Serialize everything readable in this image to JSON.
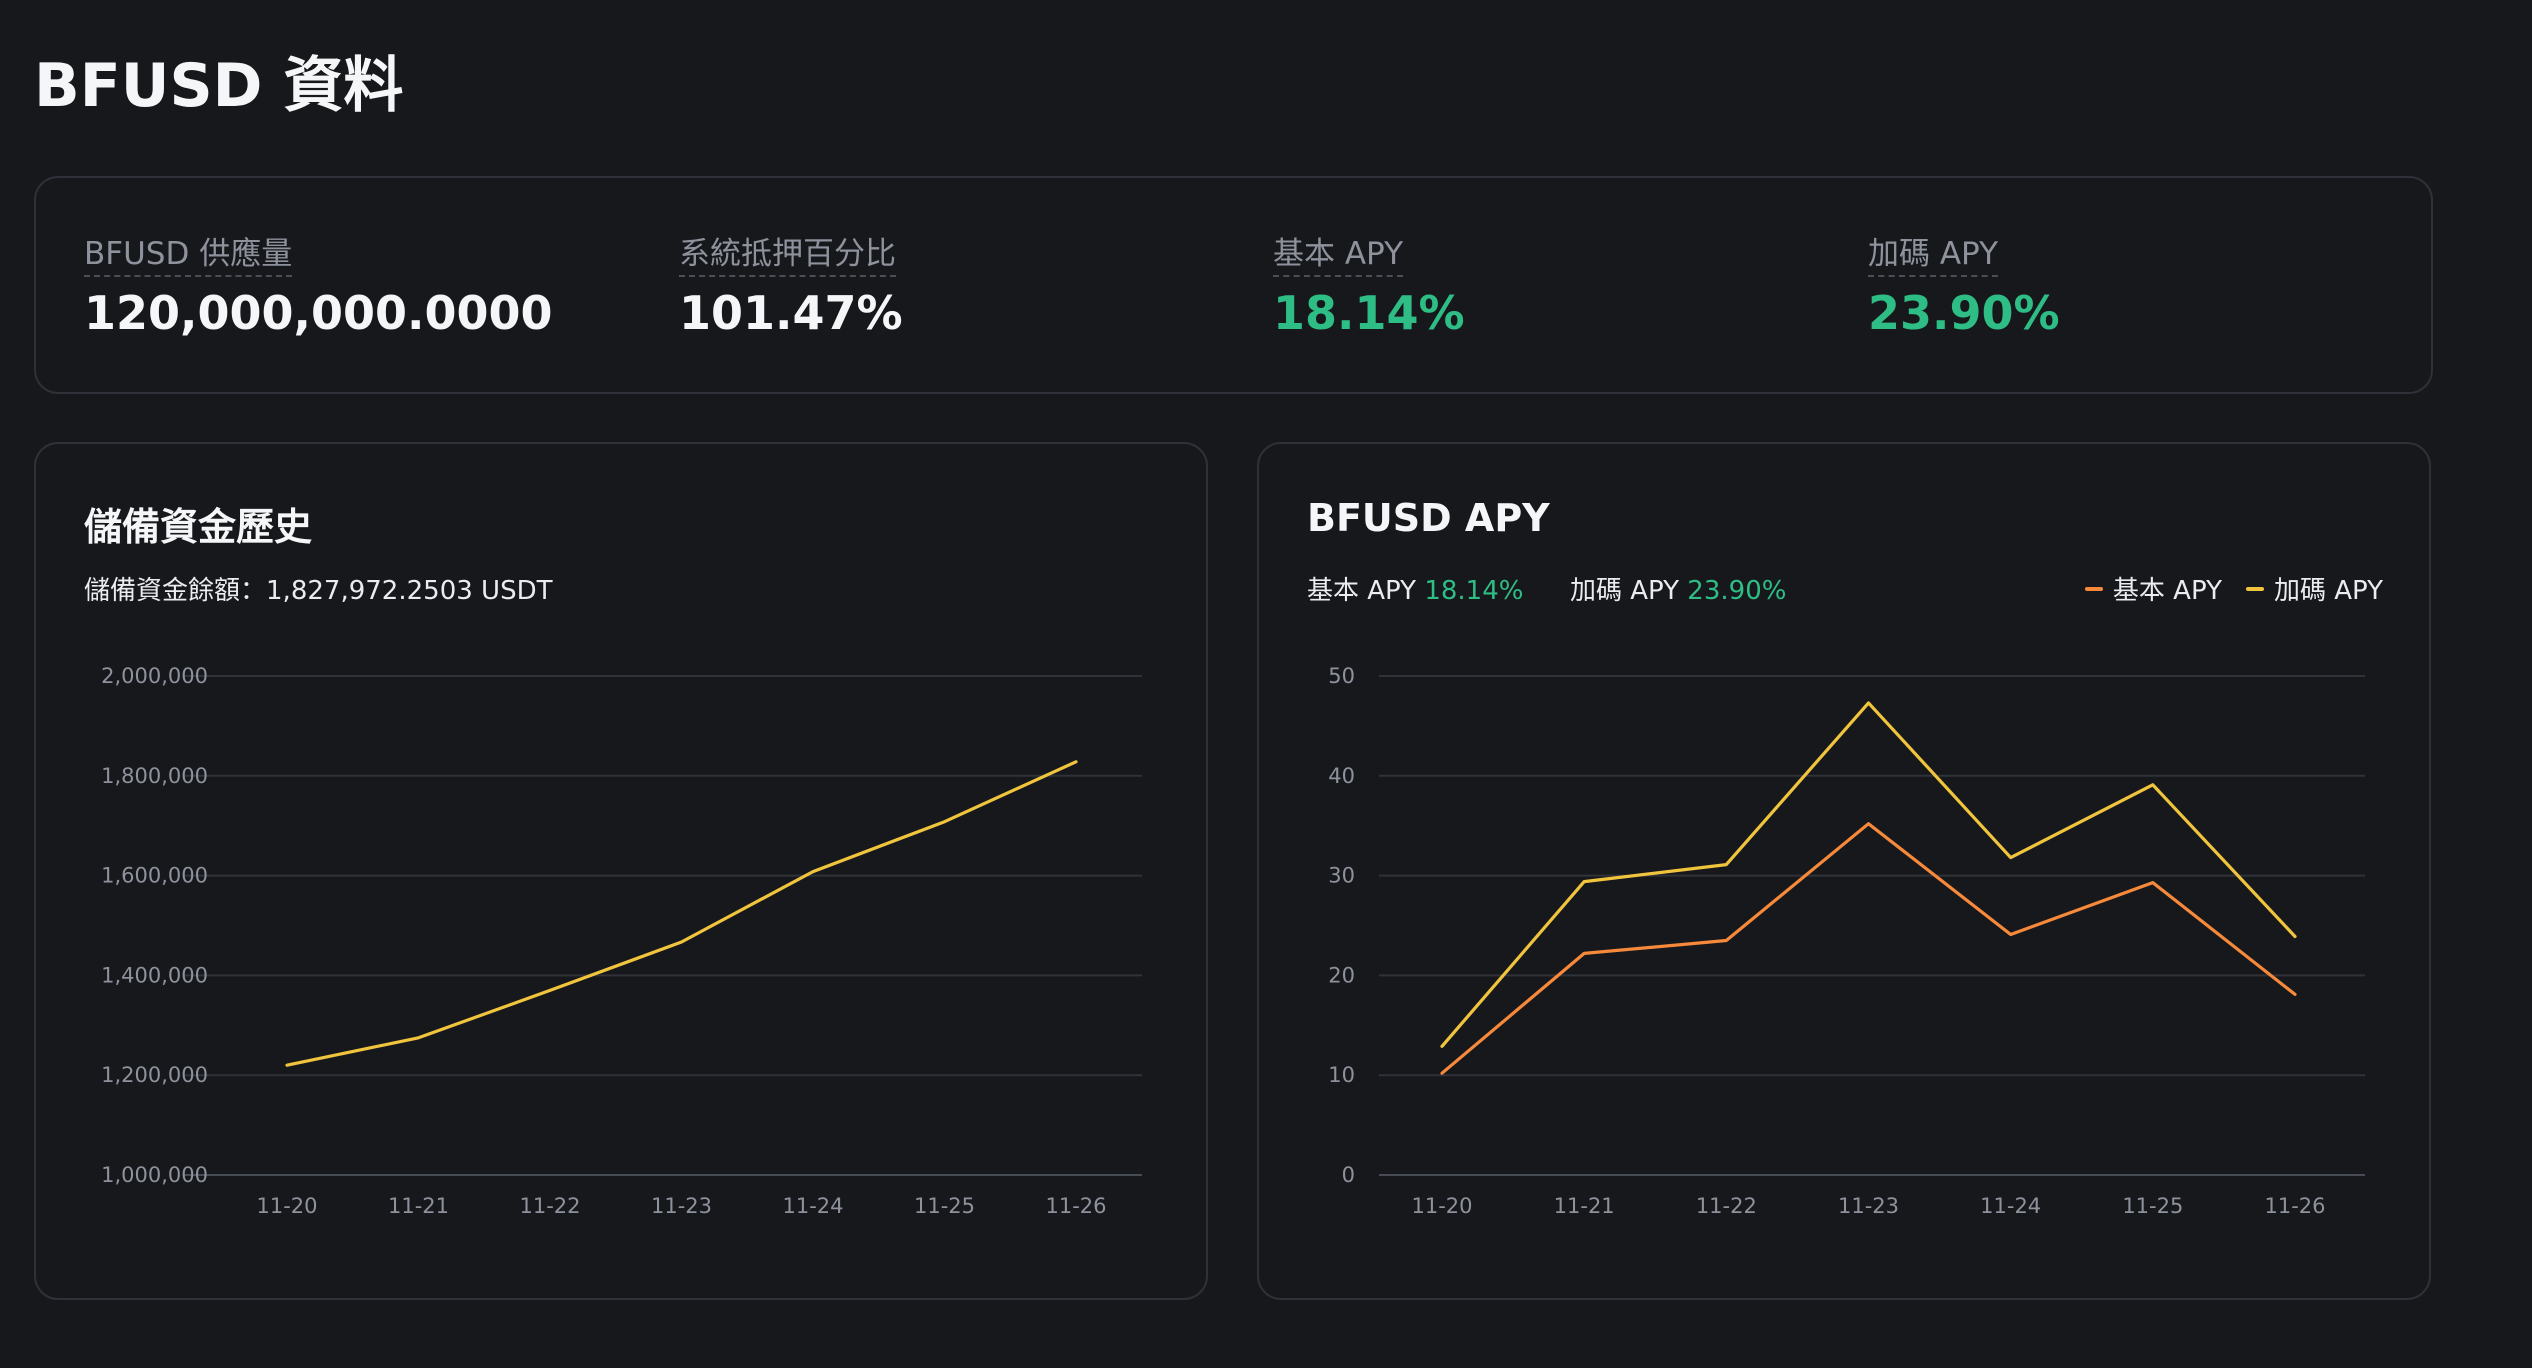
{
  "page": {
    "title": "BFUSD 資料"
  },
  "stats": [
    {
      "label": "BFUSD 供應量",
      "value": "120,000,000.0000",
      "color": "#f5f6f7"
    },
    {
      "label": "系統抵押百分比",
      "value": "101.47%",
      "color": "#f5f6f7"
    },
    {
      "label": "基本 APY",
      "value": "18.14%",
      "color": "#2ebd85"
    },
    {
      "label": "加碼 APY",
      "value": "23.90%",
      "color": "#2ebd85"
    }
  ],
  "reserve_chart": {
    "subtitle_label": "儲備資金餘額：",
    "subtitle_value": "1,827,972.2503 USDT"
  },
  "apy_chart": {
    "summary": {
      "base_label": "基本 APY",
      "base_value": "18.14%",
      "bonus_label": "加碼 APY",
      "bonus_value": "23.90%"
    }
  },
  "chart_data": [
    {
      "type": "line",
      "title": "儲備資金歷史",
      "xlabel": "",
      "ylabel": "",
      "categories": [
        "11-20",
        "11-21",
        "11-22",
        "11-23",
        "11-24",
        "11-25",
        "11-26"
      ],
      "series": [
        {
          "name": "儲備資金",
          "color": "#f0c43c",
          "values": [
            1220000,
            1275000,
            1370000,
            1467000,
            1608000,
            1708000,
            1828000
          ]
        }
      ],
      "ylim": [
        1000000,
        2000000
      ],
      "yticks": [
        1000000,
        1200000,
        1400000,
        1600000,
        1800000,
        2000000
      ],
      "ytick_labels": [
        "1,000,000",
        "1,200,000",
        "1,400,000",
        "1,600,000",
        "1,800,000",
        "2,000,000"
      ],
      "grid": true,
      "legend": "none"
    },
    {
      "type": "line",
      "title": "BFUSD APY",
      "xlabel": "",
      "ylabel": "",
      "categories": [
        "11-20",
        "11-21",
        "11-22",
        "11-23",
        "11-24",
        "11-25",
        "11-26"
      ],
      "series": [
        {
          "name": "基本 APY",
          "color": "#f7893b",
          "values": [
            10.2,
            22.2,
            23.5,
            35.2,
            24.1,
            29.3,
            18.1
          ]
        },
        {
          "name": "加碼 APY",
          "color": "#f0c43c",
          "values": [
            12.9,
            29.4,
            31.1,
            47.3,
            31.8,
            39.1,
            23.9
          ]
        }
      ],
      "ylim": [
        0,
        50
      ],
      "yticks": [
        0,
        10,
        20,
        30,
        40,
        50
      ],
      "ytick_labels": [
        "0",
        "10",
        "20",
        "30",
        "40",
        "50"
      ],
      "grid": true,
      "legend": "top-right"
    }
  ]
}
